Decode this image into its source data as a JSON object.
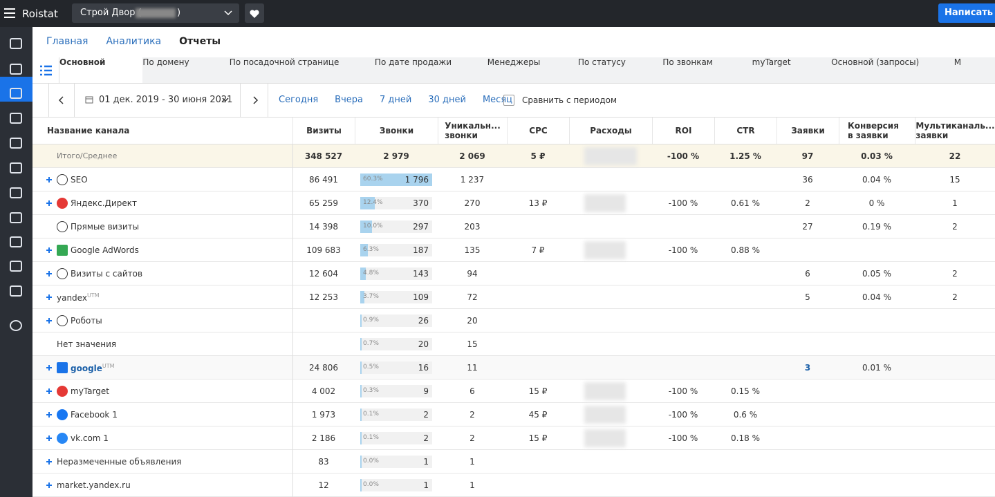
{
  "header": {
    "brand": "Roistat",
    "project": "Строй Двор (",
    "project_end": ")",
    "button": "Написать в"
  },
  "breadcrumbs": [
    "Главная",
    "Аналитика",
    "Отчеты"
  ],
  "tabs": [
    "Основной",
    "По домену",
    "По посадочной странице",
    "По дате продажи",
    "Менеджеры",
    "По статусу",
    "По звонкам",
    "myTarget",
    "Основной (запросы)",
    "М"
  ],
  "toolbar": {
    "date": "01 дек. 2019 - 30 июня 2021",
    "quick": [
      "Сегодня",
      "Вчера",
      "7 дней",
      "30 дней",
      "Месяц"
    ],
    "compare": "Сравнить с периодом"
  },
  "table": {
    "columns": [
      "Название канала",
      "Визиты",
      "Звонки",
      "Уникальн... звонки",
      "CPC",
      "Расходы",
      "ROI",
      "CTR",
      "Заявки",
      "Конверсия в заявки",
      "Мультиканаль... заявки"
    ],
    "total": {
      "name": "Итого/Среднее",
      "visits": "348 527",
      "calls": "2 979",
      "unique": "2 069",
      "cpc": "5 ₽",
      "roi": "-100 %",
      "ctr": "1.25 %",
      "leads": "97",
      "conv": "0.03 %",
      "multi": "22"
    },
    "rows": [
      {
        "name": "SEO",
        "visits": "86 491",
        "share": {
          "value": 60.3,
          "label": "60.3%"
        },
        "calls": "1 796",
        "unique": "1 237",
        "leads": "36",
        "conv": "0.04 %",
        "multi": "15"
      },
      {
        "name": "Яндекс.Директ",
        "visits": "65 259",
        "share": {
          "value": 12.4,
          "label": "12.4%"
        },
        "calls": "370",
        "unique": "270",
        "cpc": "13 ₽",
        "roi": "-100 %",
        "ctr": "0.61 %",
        "leads": "2",
        "conv": "0 %",
        "multi": "1"
      },
      {
        "name": "Прямые визиты",
        "visits": "14 398",
        "share": {
          "value": 10,
          "label": "10.0%"
        },
        "calls": "297",
        "unique": "203",
        "leads": "27",
        "conv": "0.19 %",
        "multi": "2"
      },
      {
        "name": "Google AdWords",
        "visits": "109 683",
        "share": {
          "value": 6.3,
          "label": "6.3%"
        },
        "calls": "187",
        "unique": "135",
        "cpc": "7 ₽",
        "roi": "-100 %",
        "ctr": "0.88 %"
      },
      {
        "name": "Визиты с сайтов",
        "visits": "12 604",
        "share": {
          "value": 4.8,
          "label": "4.8%"
        },
        "calls": "143",
        "unique": "94",
        "leads": "6",
        "conv": "0.05 %",
        "multi": "2"
      },
      {
        "name": "yandex",
        "sup": "UTM",
        "visits": "12 253",
        "share": {
          "value": 3.7,
          "label": "3.7%"
        },
        "calls": "109",
        "unique": "72",
        "leads": "5",
        "conv": "0.04 %",
        "multi": "2"
      },
      {
        "name": "Роботы",
        "share": {
          "value": 0.9,
          "label": "0.9%"
        },
        "calls": "26",
        "unique": "20"
      },
      {
        "name": "Нет значения",
        "share": {
          "value": 0.7,
          "label": "0.7%"
        },
        "calls": "20",
        "unique": "15"
      },
      {
        "name": "google",
        "sup": "UTM",
        "visits": "24 806",
        "share": {
          "value": 0.5,
          "label": "0.5%"
        },
        "calls": "16",
        "unique": "11",
        "leads": "3",
        "conv": "0.01 %"
      },
      {
        "name": "myTarget",
        "visits": "4 002",
        "share": {
          "value": 0.3,
          "label": "0.3%"
        },
        "calls": "9",
        "unique": "6",
        "cpc": "15 ₽",
        "roi": "-100 %",
        "ctr": "0.15 %"
      },
      {
        "name": "Facebook 1",
        "visits": "1 973",
        "share": {
          "value": 0.1,
          "label": "0.1%"
        },
        "calls": "2",
        "unique": "2",
        "cpc": "45 ₽",
        "roi": "-100 %",
        "ctr": "0.6 %"
      },
      {
        "name": "vk.com 1",
        "visits": "2 186",
        "share": {
          "value": 0.1,
          "label": "0.1%"
        },
        "calls": "2",
        "unique": "2",
        "cpc": "15 ₽",
        "roi": "-100 %",
        "ctr": "0.18 %"
      },
      {
        "name": "Неразмеченные объявления",
        "visits": "83",
        "share": {
          "value": 0,
          "label": "0.0%"
        },
        "calls": "1",
        "unique": "1"
      },
      {
        "name": "market.yandex.ru",
        "visits": "12",
        "share": {
          "value": 0,
          "label": "0.0%"
        },
        "calls": "1",
        "unique": "1"
      }
    ]
  }
}
